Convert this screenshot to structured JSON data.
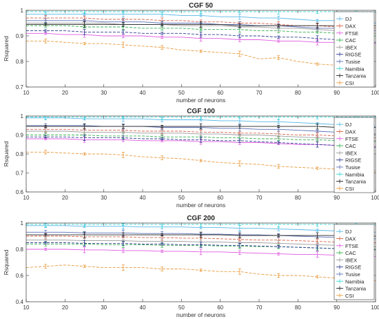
{
  "chart_data": [
    {
      "type": "line",
      "title": "CGF 50",
      "xlabel": "number of neurons",
      "ylabel": "Rsquared",
      "xlim": [
        10,
        100
      ],
      "ylim": [
        0.7,
        1
      ],
      "xticks": [
        10,
        20,
        30,
        40,
        50,
        60,
        70,
        80,
        90,
        100
      ],
      "yticks": [
        0.7,
        0.8,
        0.9,
        1
      ],
      "ytick_labels": [
        "0.7",
        "0.8",
        "0.9",
        "1"
      ],
      "legend": "top-right",
      "x": [
        10,
        15,
        20,
        25,
        30,
        35,
        40,
        45,
        50,
        55,
        60,
        65,
        70,
        75,
        80,
        85,
        90,
        95,
        100
      ],
      "series": [
        {
          "name": "DJ",
          "color": "#55b7e6",
          "values": [
            0.985,
            0.985,
            0.985,
            0.985,
            0.985,
            0.985,
            0.985,
            0.985,
            0.98,
            0.98,
            0.975,
            0.975,
            0.97,
            0.97,
            0.965,
            0.96,
            0.96,
            0.955,
            0.95
          ]
        },
        {
          "name": "DAX",
          "color": "#d9604a",
          "values": [
            0.97,
            0.97,
            0.97,
            0.97,
            0.965,
            0.965,
            0.965,
            0.96,
            0.96,
            0.955,
            0.955,
            0.95,
            0.95,
            0.945,
            0.94,
            0.94,
            0.935,
            0.93,
            0.93
          ]
        },
        {
          "name": "FTSE",
          "color": "#e05ae0",
          "values": [
            0.91,
            0.91,
            0.905,
            0.905,
            0.9,
            0.9,
            0.9,
            0.895,
            0.895,
            0.89,
            0.89,
            0.885,
            0.885,
            0.88,
            0.88,
            0.875,
            0.875,
            0.87,
            0.87
          ]
        },
        {
          "name": "CAC",
          "color": "#33b14f",
          "values": [
            0.94,
            0.94,
            0.94,
            0.935,
            0.935,
            0.935,
            0.93,
            0.93,
            0.93,
            0.925,
            0.925,
            0.925,
            0.92,
            0.92,
            0.915,
            0.915,
            0.91,
            0.905,
            0.9
          ]
        },
        {
          "name": "IBEX",
          "color": "#999999",
          "values": [
            0.95,
            0.95,
            0.95,
            0.95,
            0.95,
            0.945,
            0.945,
            0.945,
            0.94,
            0.94,
            0.94,
            0.935,
            0.935,
            0.93,
            0.93,
            0.925,
            0.92,
            0.915,
            0.91
          ]
        },
        {
          "name": "RIGSE",
          "color": "#2e3a91",
          "values": [
            0.92,
            0.92,
            0.92,
            0.915,
            0.915,
            0.915,
            0.91,
            0.91,
            0.91,
            0.905,
            0.905,
            0.9,
            0.9,
            0.895,
            0.895,
            0.89,
            0.885,
            0.88,
            0.875
          ]
        },
        {
          "name": "Tusise",
          "color": "#5b6fb5",
          "values": [
            0.96,
            0.96,
            0.96,
            0.96,
            0.955,
            0.955,
            0.955,
            0.95,
            0.95,
            0.95,
            0.945,
            0.945,
            0.94,
            0.94,
            0.935,
            0.93,
            0.93,
            0.925,
            0.92
          ]
        },
        {
          "name": "Namibia",
          "color": "#33d6d6",
          "values": [
            0.995,
            0.995,
            0.995,
            0.995,
            0.995,
            0.995,
            0.995,
            0.995,
            0.995,
            0.995,
            0.995,
            0.995,
            0.995,
            0.995,
            0.995,
            0.995,
            0.995,
            0.995,
            0.995
          ]
        },
        {
          "name": "Tanzania",
          "color": "#222222",
          "values": [
            0.945,
            0.945,
            0.945,
            0.945,
            0.945,
            0.945,
            0.945,
            0.945,
            0.945,
            0.945,
            0.945,
            0.94,
            0.94,
            0.94,
            0.94,
            0.94,
            0.94,
            0.94,
            0.94
          ]
        },
        {
          "name": "CSI",
          "color": "#e89a3c",
          "values": [
            0.88,
            0.88,
            0.875,
            0.87,
            0.87,
            0.865,
            0.86,
            0.855,
            0.845,
            0.84,
            0.835,
            0.83,
            0.81,
            0.815,
            0.8,
            0.79,
            0.785,
            0.78,
            0.78
          ]
        }
      ]
    },
    {
      "type": "line",
      "title": "CGF 100",
      "xlabel": "number of neurons",
      "ylabel": "Rsquared",
      "xlim": [
        10,
        100
      ],
      "ylim": [
        0.6,
        1
      ],
      "xticks": [
        10,
        20,
        30,
        40,
        50,
        60,
        70,
        80,
        90,
        100
      ],
      "yticks": [
        0.6,
        0.7,
        0.8,
        0.9,
        1
      ],
      "ytick_labels": [
        "0.6",
        "0.7",
        "0.8",
        "0.9",
        "1"
      ],
      "legend": "top-right",
      "x": [
        10,
        15,
        20,
        25,
        30,
        35,
        40,
        45,
        50,
        55,
        60,
        65,
        70,
        75,
        80,
        85,
        90,
        95,
        100
      ],
      "series": [
        {
          "name": "DJ",
          "color": "#55b7e6",
          "values": [
            0.99,
            0.99,
            0.99,
            0.985,
            0.985,
            0.985,
            0.985,
            0.98,
            0.98,
            0.98,
            0.975,
            0.975,
            0.97,
            0.97,
            0.965,
            0.96,
            0.955,
            0.95,
            0.945
          ]
        },
        {
          "name": "DAX",
          "color": "#d9604a",
          "values": [
            0.93,
            0.93,
            0.93,
            0.925,
            0.925,
            0.925,
            0.92,
            0.92,
            0.92,
            0.915,
            0.915,
            0.91,
            0.91,
            0.905,
            0.9,
            0.9,
            0.895,
            0.89,
            0.885
          ]
        },
        {
          "name": "FTSE",
          "color": "#e05ae0",
          "values": [
            0.88,
            0.88,
            0.88,
            0.875,
            0.875,
            0.875,
            0.87,
            0.87,
            0.87,
            0.865,
            0.865,
            0.86,
            0.86,
            0.855,
            0.85,
            0.85,
            0.845,
            0.84,
            0.84
          ]
        },
        {
          "name": "CAC",
          "color": "#33b14f",
          "values": [
            0.9,
            0.9,
            0.9,
            0.9,
            0.895,
            0.895,
            0.895,
            0.89,
            0.89,
            0.89,
            0.885,
            0.885,
            0.88,
            0.88,
            0.875,
            0.875,
            0.87,
            0.87,
            0.865
          ]
        },
        {
          "name": "IBEX",
          "color": "#999999",
          "values": [
            0.92,
            0.92,
            0.92,
            0.915,
            0.915,
            0.915,
            0.91,
            0.91,
            0.91,
            0.905,
            0.905,
            0.9,
            0.9,
            0.895,
            0.89,
            0.885,
            0.88,
            0.875,
            0.87
          ]
        },
        {
          "name": "RIGSE",
          "color": "#2e3a91",
          "values": [
            0.89,
            0.89,
            0.89,
            0.885,
            0.885,
            0.885,
            0.88,
            0.88,
            0.875,
            0.875,
            0.87,
            0.87,
            0.865,
            0.86,
            0.855,
            0.85,
            0.845,
            0.84,
            0.835
          ]
        },
        {
          "name": "Tusise",
          "color": "#5b6fb5",
          "values": [
            0.95,
            0.95,
            0.95,
            0.95,
            0.945,
            0.945,
            0.945,
            0.94,
            0.94,
            0.94,
            0.935,
            0.935,
            0.93,
            0.93,
            0.925,
            0.92,
            0.915,
            0.91,
            0.905
          ]
        },
        {
          "name": "Namibia",
          "color": "#33d6d6",
          "values": [
            0.995,
            0.995,
            0.995,
            0.995,
            0.995,
            0.995,
            0.995,
            0.995,
            0.995,
            0.995,
            0.995,
            0.995,
            0.995,
            0.995,
            0.995,
            0.995,
            0.995,
            0.995,
            0.995
          ]
        },
        {
          "name": "Tanzania",
          "color": "#222222",
          "values": [
            0.945,
            0.945,
            0.945,
            0.945,
            0.945,
            0.945,
            0.945,
            0.945,
            0.945,
            0.945,
            0.945,
            0.945,
            0.945,
            0.945,
            0.945,
            0.945,
            0.94,
            0.94,
            0.94
          ]
        },
        {
          "name": "CSI",
          "color": "#e89a3c",
          "values": [
            0.81,
            0.81,
            0.805,
            0.8,
            0.8,
            0.795,
            0.785,
            0.78,
            0.775,
            0.765,
            0.755,
            0.75,
            0.745,
            0.735,
            0.73,
            0.725,
            0.72,
            0.71,
            0.71
          ]
        }
      ]
    },
    {
      "type": "line",
      "title": "CGF 200",
      "xlabel": "number of neurons",
      "ylabel": "Rsquared",
      "xlim": [
        10,
        100
      ],
      "ylim": [
        0.4,
        1
      ],
      "xticks": [
        10,
        20,
        30,
        40,
        50,
        60,
        70,
        80,
        90,
        100
      ],
      "yticks": [
        0.4,
        0.6,
        0.8,
        1
      ],
      "ytick_labels": [
        "0.4",
        "0.6",
        "0.8",
        "1"
      ],
      "legend": "top-right",
      "x": [
        10,
        15,
        20,
        25,
        30,
        35,
        40,
        45,
        50,
        55,
        60,
        65,
        70,
        75,
        80,
        85,
        90,
        95,
        100
      ],
      "series": [
        {
          "name": "DJ",
          "color": "#55b7e6",
          "values": [
            0.98,
            0.98,
            0.98,
            0.975,
            0.975,
            0.975,
            0.97,
            0.97,
            0.97,
            0.965,
            0.965,
            0.96,
            0.96,
            0.955,
            0.95,
            0.945,
            0.94,
            0.935,
            0.93
          ]
        },
        {
          "name": "DAX",
          "color": "#d9604a",
          "values": [
            0.9,
            0.9,
            0.9,
            0.895,
            0.895,
            0.895,
            0.89,
            0.89,
            0.885,
            0.885,
            0.88,
            0.875,
            0.87,
            0.87,
            0.865,
            0.86,
            0.855,
            0.85,
            0.85
          ]
        },
        {
          "name": "FTSE",
          "color": "#e05ae0",
          "values": [
            0.8,
            0.8,
            0.8,
            0.795,
            0.795,
            0.79,
            0.79,
            0.785,
            0.785,
            0.78,
            0.78,
            0.775,
            0.77,
            0.765,
            0.76,
            0.76,
            0.755,
            0.75,
            0.745
          ]
        },
        {
          "name": "CAC",
          "color": "#33b14f",
          "values": [
            0.84,
            0.84,
            0.84,
            0.84,
            0.835,
            0.835,
            0.835,
            0.83,
            0.83,
            0.83,
            0.825,
            0.825,
            0.82,
            0.82,
            0.815,
            0.81,
            0.805,
            0.8,
            0.8
          ]
        },
        {
          "name": "IBEX",
          "color": "#999999",
          "values": [
            0.87,
            0.87,
            0.87,
            0.865,
            0.865,
            0.865,
            0.86,
            0.86,
            0.86,
            0.855,
            0.855,
            0.85,
            0.85,
            0.845,
            0.84,
            0.835,
            0.83,
            0.825,
            0.82
          ]
        },
        {
          "name": "RIGSE",
          "color": "#2e3a91",
          "values": [
            0.85,
            0.85,
            0.85,
            0.845,
            0.845,
            0.845,
            0.84,
            0.84,
            0.835,
            0.835,
            0.83,
            0.83,
            0.825,
            0.82,
            0.815,
            0.81,
            0.805,
            0.8,
            0.795
          ]
        },
        {
          "name": "Tusise",
          "color": "#5b6fb5",
          "values": [
            0.93,
            0.93,
            0.93,
            0.925,
            0.925,
            0.925,
            0.92,
            0.92,
            0.92,
            0.915,
            0.915,
            0.91,
            0.91,
            0.905,
            0.9,
            0.895,
            0.89,
            0.885,
            0.88
          ]
        },
        {
          "name": "Namibia",
          "color": "#33d6d6",
          "values": [
            0.99,
            0.99,
            0.99,
            0.99,
            0.99,
            0.99,
            0.99,
            0.99,
            0.99,
            0.99,
            0.99,
            0.99,
            0.99,
            0.99,
            0.99,
            0.99,
            0.99,
            0.99,
            0.99
          ]
        },
        {
          "name": "Tanzania",
          "color": "#222222",
          "values": [
            0.91,
            0.91,
            0.91,
            0.91,
            0.91,
            0.91,
            0.91,
            0.91,
            0.91,
            0.91,
            0.91,
            0.905,
            0.905,
            0.905,
            0.905,
            0.905,
            0.905,
            0.9,
            0.9
          ]
        },
        {
          "name": "CSI",
          "color": "#e89a3c",
          "values": [
            0.66,
            0.67,
            0.68,
            0.67,
            0.66,
            0.66,
            0.66,
            0.65,
            0.65,
            0.64,
            0.63,
            0.63,
            0.61,
            0.6,
            0.6,
            0.59,
            0.58,
            0.57,
            0.56
          ]
        }
      ]
    }
  ]
}
